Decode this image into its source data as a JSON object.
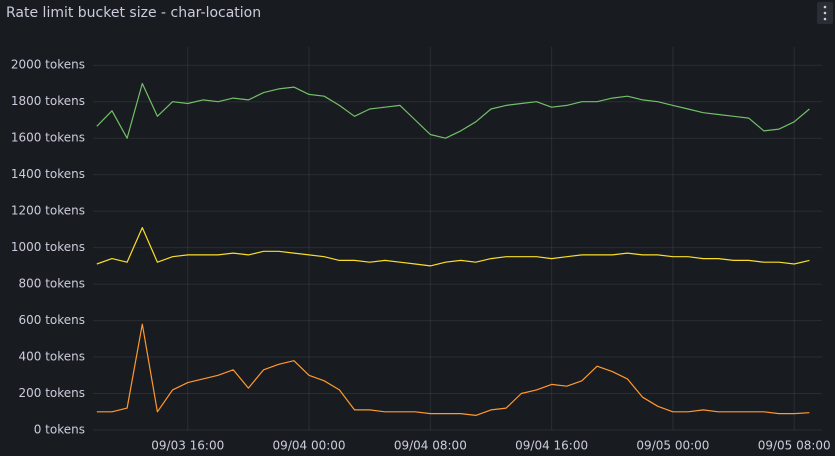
{
  "chart_data": {
    "type": "line",
    "title": "Rate limit bucket size - char-location",
    "x": [
      "09/03 10:00",
      "09/03 11:00",
      "09/03 12:00",
      "09/03 13:00",
      "09/03 14:00",
      "09/03 15:00",
      "09/03 16:00",
      "09/03 17:00",
      "09/03 18:00",
      "09/03 19:00",
      "09/03 20:00",
      "09/03 21:00",
      "09/03 22:00",
      "09/03 23:00",
      "09/04 00:00",
      "09/04 01:00",
      "09/04 02:00",
      "09/04 03:00",
      "09/04 04:00",
      "09/04 05:00",
      "09/04 06:00",
      "09/04 07:00",
      "09/04 08:00",
      "09/04 09:00",
      "09/04 10:00",
      "09/04 11:00",
      "09/04 12:00",
      "09/04 13:00",
      "09/04 14:00",
      "09/04 15:00",
      "09/04 16:00",
      "09/04 17:00",
      "09/04 18:00",
      "09/04 19:00",
      "09/04 20:00",
      "09/04 21:00",
      "09/04 22:00",
      "09/04 23:00",
      "09/05 00:00",
      "09/05 01:00",
      "09/05 02:00",
      "09/05 03:00",
      "09/05 04:00",
      "09/05 05:00",
      "09/05 06:00",
      "09/05 07:00",
      "09/05 08:00",
      "09/05 09:00"
    ],
    "series": [
      {
        "color": "#73bf69",
        "values": [
          1665,
          1750,
          1600,
          1900,
          1720,
          1800,
          1790,
          1810,
          1800,
          1820,
          1810,
          1850,
          1870,
          1880,
          1840,
          1830,
          1780,
          1720,
          1760,
          1770,
          1780,
          1700,
          1620,
          1600,
          1640,
          1690,
          1760,
          1780,
          1790,
          1800,
          1770,
          1780,
          1800,
          1800,
          1820,
          1830,
          1810,
          1800,
          1780,
          1760,
          1740,
          1730,
          1720,
          1710,
          1640,
          1650,
          1690,
          1760
        ]
      },
      {
        "color": "#fade2a",
        "values": [
          910,
          940,
          920,
          1110,
          920,
          950,
          960,
          960,
          960,
          970,
          960,
          980,
          980,
          970,
          960,
          950,
          930,
          930,
          920,
          930,
          920,
          910,
          900,
          920,
          930,
          920,
          940,
          950,
          950,
          950,
          940,
          950,
          960,
          960,
          960,
          970,
          960,
          960,
          950,
          950,
          940,
          940,
          930,
          930,
          920,
          920,
          910,
          930
        ]
      },
      {
        "color": "#ff9830",
        "values": [
          100,
          100,
          120,
          580,
          100,
          220,
          260,
          280,
          300,
          330,
          230,
          330,
          360,
          380,
          300,
          270,
          220,
          110,
          110,
          100,
          100,
          100,
          90,
          90,
          90,
          80,
          110,
          120,
          200,
          220,
          250,
          240,
          270,
          350,
          320,
          280,
          180,
          130,
          100,
          100,
          110,
          100,
          100,
          100,
          100,
          90,
          90,
          95
        ]
      }
    ],
    "xlim": [
      "09/03 09:45",
      "09/05 09:50"
    ],
    "xticks": [
      "09/03 16:00",
      "09/04 00:00",
      "09/04 08:00",
      "09/04 16:00",
      "09/05 00:00",
      "09/05 08:00"
    ],
    "ylim": [
      0,
      2100
    ],
    "yticks": [
      {
        "value": 0,
        "label": "0 tokens"
      },
      {
        "value": 200,
        "label": "200 tokens"
      },
      {
        "value": 400,
        "label": "400 tokens"
      },
      {
        "value": 600,
        "label": "600 tokens"
      },
      {
        "value": 800,
        "label": "800 tokens"
      },
      {
        "value": 1000,
        "label": "1000 tokens"
      },
      {
        "value": 1200,
        "label": "1200 tokens"
      },
      {
        "value": 1400,
        "label": "1400 tokens"
      },
      {
        "value": 1600,
        "label": "1600 tokens"
      },
      {
        "value": 1800,
        "label": "1800 tokens"
      },
      {
        "value": 2000,
        "label": "2000 tokens"
      }
    ],
    "grid": true
  }
}
